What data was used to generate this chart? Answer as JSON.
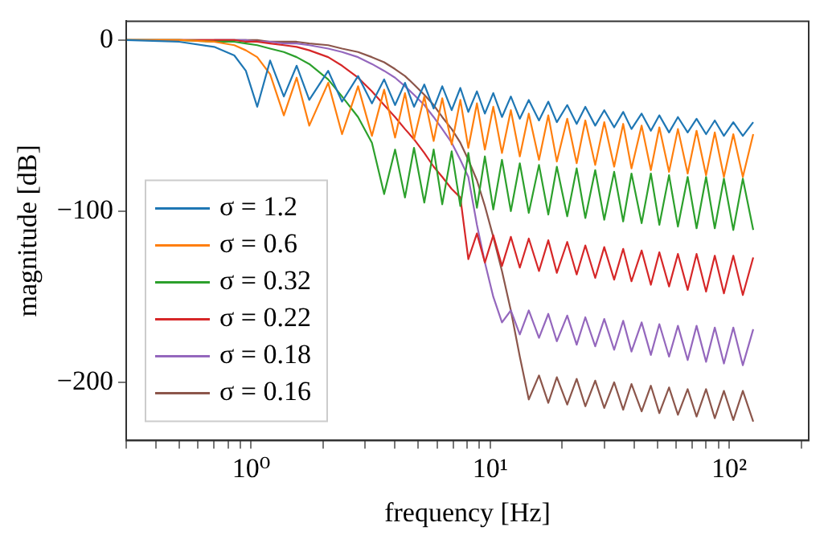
{
  "chart_data": {
    "type": "line",
    "xlabel": "frequency [Hz]",
    "ylabel": "magnitude [dB]",
    "log": "x",
    "grid": false,
    "legend": "bottom left",
    "marker": "none",
    "line_style": "solid",
    "x": [
      0.3,
      0.5,
      0.7,
      0.85,
      0.95,
      1.06,
      1.2,
      1.37,
      1.55,
      1.75,
      2.1,
      2.4,
      2.8,
      3.2,
      3.6,
      4.0,
      4.4,
      4.8,
      5.3,
      5.8,
      6.3,
      6.9,
      7.5,
      8.1,
      8.8,
      9.5,
      10.3,
      11.2,
      12.2,
      13.3,
      14.5,
      16,
      17.5,
      19,
      21,
      23,
      25,
      27.5,
      30,
      33,
      36,
      39,
      43,
      47,
      51,
      56,
      61,
      67,
      73,
      80,
      87,
      95,
      104,
      114,
      126
    ],
    "xlim": [
      0.3,
      215
    ],
    "ylim": [
      -234,
      11
    ],
    "xticks": [
      {
        "value": 0.3,
        "label": null
      },
      {
        "value": 0.4,
        "label": null
      },
      {
        "value": 0.5,
        "label": null
      },
      {
        "value": 0.6,
        "label": null
      },
      {
        "value": 0.7,
        "label": null
      },
      {
        "value": 0.8,
        "label": null
      },
      {
        "value": 0.9,
        "label": null
      },
      {
        "value": 1,
        "label": "10⁰"
      },
      {
        "value": 2,
        "label": null
      },
      {
        "value": 3,
        "label": null
      },
      {
        "value": 4,
        "label": null
      },
      {
        "value": 5,
        "label": null
      },
      {
        "value": 6,
        "label": null
      },
      {
        "value": 7,
        "label": null
      },
      {
        "value": 8,
        "label": null
      },
      {
        "value": 9,
        "label": null
      },
      {
        "value": 10,
        "label": "10¹"
      },
      {
        "value": 20,
        "label": null
      },
      {
        "value": 30,
        "label": null
      },
      {
        "value": 40,
        "label": null
      },
      {
        "value": 50,
        "label": null
      },
      {
        "value": 60,
        "label": null
      },
      {
        "value": 70,
        "label": null
      },
      {
        "value": 80,
        "label": null
      },
      {
        "value": 90,
        "label": null
      },
      {
        "value": 100,
        "label": "10²"
      },
      {
        "value": 200,
        "label": null
      }
    ],
    "yticks": [
      0,
      {
        "value": -100,
        "label": "−100"
      },
      {
        "value": -200,
        "label": "−200"
      }
    ],
    "series": [
      {
        "name": "σ = 1.2",
        "color": "#1f77b4",
        "values": [
          0,
          -1,
          -4,
          -9,
          -18,
          -39,
          -12,
          -33,
          -15,
          -35,
          -18,
          -36,
          -21,
          -37,
          -23,
          -38,
          -25,
          -39,
          -26,
          -40,
          -27,
          -41,
          -28,
          -42,
          -30,
          -43,
          -31,
          -45,
          -33,
          -46,
          -35,
          -47,
          -36,
          -48,
          -38,
          -49,
          -39,
          -50,
          -41,
          -51,
          -42,
          -52,
          -43,
          -53,
          -44,
          -54,
          -45,
          -54,
          -46,
          -55,
          -47,
          -56,
          -48,
          -56,
          -48
        ]
      },
      {
        "name": "σ = 0.6",
        "color": "#ff7f0e",
        "values": [
          0,
          0,
          -1,
          -3,
          -6,
          -10,
          -20,
          -44,
          -22,
          -50,
          -25,
          -55,
          -27,
          -56,
          -29,
          -57,
          -31,
          -58,
          -33,
          -59,
          -34,
          -61,
          -35,
          -63,
          -37,
          -64,
          -39,
          -66,
          -41,
          -68,
          -43,
          -70,
          -44,
          -71,
          -46,
          -72,
          -47,
          -73,
          -48,
          -74,
          -49,
          -75,
          -50,
          -76,
          -51,
          -77,
          -52,
          -78,
          -53,
          -79,
          -54,
          -80,
          -55,
          -80,
          -55
        ]
      },
      {
        "name": "σ = 0.32",
        "color": "#2ca02c",
        "values": [
          0,
          0,
          -1,
          -1,
          -2,
          -3,
          -5,
          -7,
          -10,
          -14,
          -23,
          -33,
          -45,
          -60,
          -90,
          -64,
          -92,
          -63,
          -95,
          -64,
          -96,
          -65,
          -97,
          -66,
          -98,
          -68,
          -99,
          -70,
          -100,
          -72,
          -101,
          -73,
          -102,
          -74,
          -103,
          -75,
          -104,
          -76,
          -105,
          -77,
          -106,
          -78,
          -107,
          -78,
          -108,
          -79,
          -109,
          -80,
          -110,
          -80,
          -110,
          -81,
          -111,
          -81,
          -111
        ]
      },
      {
        "name": "σ = 0.22",
        "color": "#d62728",
        "values": [
          0,
          0,
          0,
          0,
          -1,
          -1,
          -2,
          -3,
          -4,
          -6,
          -10,
          -15,
          -22,
          -30,
          -38,
          -45,
          -52,
          -58,
          -66,
          -74,
          -80,
          -87,
          -92,
          -128,
          -113,
          -130,
          -114,
          -132,
          -115,
          -133,
          -116,
          -135,
          -117,
          -136,
          -118,
          -137,
          -120,
          -139,
          -121,
          -140,
          -122,
          -141,
          -123,
          -143,
          -124,
          -144,
          -125,
          -146,
          -125,
          -147,
          -126,
          -148,
          -126,
          -149,
          -127
        ]
      },
      {
        "name": "σ = 0.18",
        "color": "#9467bd",
        "values": [
          null,
          null,
          0,
          0,
          0,
          -1,
          -1,
          -2,
          -2,
          -3,
          -5,
          -7,
          -10,
          -14,
          -18,
          -22,
          -27,
          -32,
          -38,
          -45,
          -52,
          -60,
          -70,
          -80,
          -108,
          -130,
          -150,
          -165,
          -158,
          -172,
          -158,
          -174,
          -160,
          -176,
          -161,
          -178,
          -162,
          -179,
          -163,
          -181,
          -164,
          -182,
          -165,
          -184,
          -166,
          -185,
          -167,
          -187,
          -167,
          -188,
          -168,
          -189,
          -168,
          -190,
          -169
        ]
      },
      {
        "name": "σ = 0.16",
        "color": "#8c564b",
        "values": [
          0,
          0,
          0,
          0,
          0,
          0,
          -1,
          -1,
          -1,
          -2,
          -3,
          -5,
          -7,
          -10,
          -13,
          -17,
          -21,
          -26,
          -32,
          -38,
          -45,
          -52,
          -60,
          -70,
          -82,
          -97,
          -115,
          -135,
          -158,
          -185,
          -210,
          -196,
          -212,
          -197,
          -213,
          -198,
          -214,
          -199,
          -215,
          -200,
          -216,
          -201,
          -217,
          -202,
          -218,
          -203,
          -219,
          -204,
          -220,
          -204,
          -221,
          -205,
          -222,
          -205,
          -223
        ]
      }
    ]
  }
}
